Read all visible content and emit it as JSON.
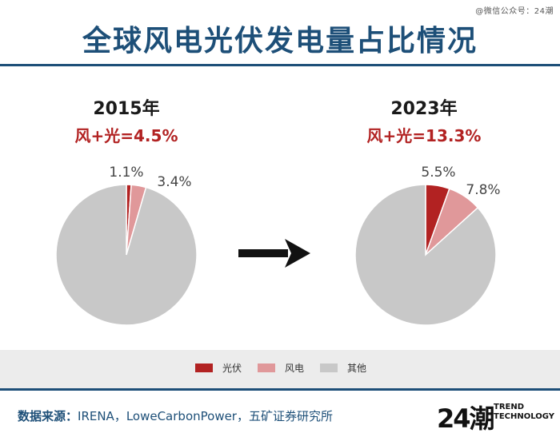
{
  "watermark": "@微信公众号：24潮",
  "title": "全球风电光伏发电量占比情况",
  "colors": {
    "solar": "#b22222",
    "wind": "#e0989a",
    "other": "#c8c8c8",
    "title_blue": "#1d4f78"
  },
  "chart_data": [
    {
      "type": "pie",
      "title": "2015年",
      "subtitle": "风+光=4.5%",
      "slices": [
        {
          "label": "光伏",
          "value": 1.1,
          "display": "1.1%"
        },
        {
          "label": "风电",
          "value": 3.4,
          "display": "3.4%"
        },
        {
          "label": "其他",
          "value": 95.5
        }
      ]
    },
    {
      "type": "pie",
      "title": "2023年",
      "subtitle": "风+光=13.3%",
      "slices": [
        {
          "label": "光伏",
          "value": 5.5,
          "display": "5.5%"
        },
        {
          "label": "风电",
          "value": 7.8,
          "display": "7.8%"
        },
        {
          "label": "其他",
          "value": 86.7
        }
      ]
    }
  ],
  "legend": [
    "光伏",
    "风电",
    "其他"
  ],
  "footer": {
    "source_label": "数据来源：",
    "source_text": "IRENA，LoweCarbonPower，五矿证券研究所",
    "logo_number": "24潮",
    "logo_line1": "TREND",
    "logo_line2": "TECHNOLOGY"
  }
}
